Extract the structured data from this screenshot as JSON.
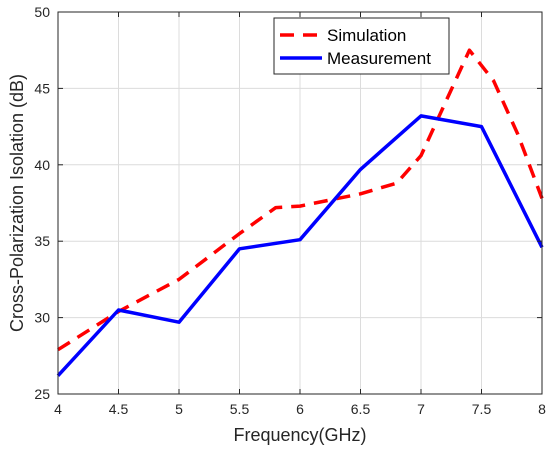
{
  "chart_data": {
    "type": "line",
    "xlabel": "Frequency(GHz)",
    "ylabel": "Cross-Polarization Isolation (dB)",
    "xlim": [
      4,
      8
    ],
    "ylim": [
      25,
      50
    ],
    "xticks": [
      4,
      4.5,
      5,
      5.5,
      6,
      6.5,
      7,
      7.5,
      8
    ],
    "xtick_labels": [
      "4",
      "4.5",
      "5",
      "5.5",
      "6",
      "6.5",
      "7",
      "7.5",
      "8"
    ],
    "yticks": [
      25,
      30,
      35,
      40,
      45,
      50
    ],
    "ytick_labels": [
      "25",
      "30",
      "35",
      "40",
      "45",
      "50"
    ],
    "grid": true,
    "legend_position": "top-right",
    "series": [
      {
        "name": "Simulation",
        "color": "#ff0000",
        "style": "dashed",
        "x": [
          4,
          4.5,
          5,
          5.5,
          5.8,
          6,
          6.5,
          6.8,
          7,
          7.4,
          7.6,
          7.8,
          8
        ],
        "y": [
          27.9,
          30.4,
          32.5,
          35.5,
          37.2,
          37.3,
          38.1,
          38.8,
          40.6,
          47.5,
          45.5,
          42.0,
          37.8
        ]
      },
      {
        "name": "Measurement",
        "color": "#0000ff",
        "style": "solid",
        "x": [
          4,
          4.5,
          5,
          5.5,
          6,
          6.5,
          7,
          7.5,
          8
        ],
        "y": [
          26.2,
          30.5,
          29.7,
          34.5,
          35.1,
          39.7,
          43.2,
          42.5,
          34.6
        ]
      }
    ]
  }
}
